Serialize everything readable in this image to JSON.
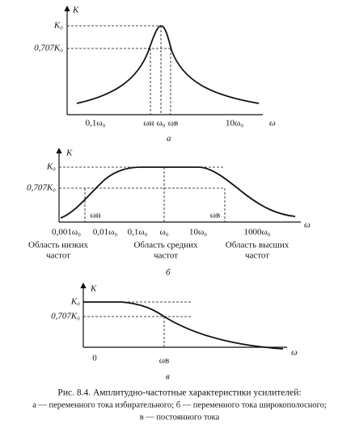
{
  "panels": [
    {
      "y_label": "K",
      "k0": "K₀",
      "k707": "0,707K₀",
      "x_label": "ω",
      "ticks": [
        "0,1ω₀",
        "ωн",
        "ω₀",
        "ωв",
        "10ω₀"
      ],
      "label": "а"
    },
    {
      "y_label": "K",
      "k0": "K₀",
      "k707": "0,707K₀",
      "x_label": "ω",
      "markers": [
        "ωн",
        "ωв"
      ],
      "ticks": [
        "0,001ω₀",
        "0,01ω₀",
        "0,1ω₀",
        "ω₀",
        "10ω₀",
        "1000ω₀"
      ],
      "regions": [
        [
          "Область низких",
          "частот"
        ],
        [
          "Область средних",
          "частот"
        ],
        [
          "Область высших",
          "частот"
        ]
      ],
      "label": "б"
    },
    {
      "y_label": "K",
      "k0": "K₀",
      "k707": "0,707K₀",
      "x_label": "ω",
      "ticks": [
        "0",
        "ωв"
      ],
      "label": "в"
    }
  ],
  "caption": [
    "Рис. 8.4. Амплитудно-частотные характеристики усилителей:",
    "а — переменного тока избирательного; б — переменного тока широкополосного;",
    "в — постоянного тока"
  ]
}
